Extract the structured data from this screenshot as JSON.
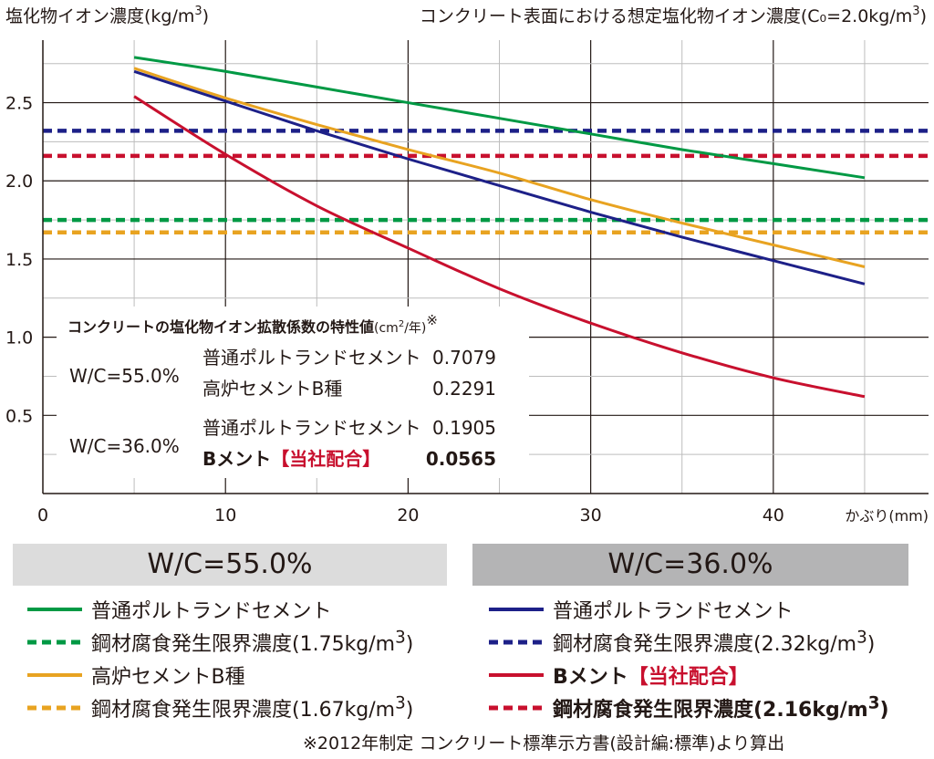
{
  "chart_data": {
    "type": "line",
    "ylabel": "塩化物イオン濃度(kg/m",
    "ylabel_sup": "3",
    "ylabel_close": ")",
    "subtitle": "コンクリート表面における想定塩化物イオン濃度(C₀=2.0kg/m",
    "subtitle_sup": "3",
    "subtitle_close": ")",
    "xlabel": "かぶり(mm)",
    "x_ticks": [
      "0",
      "10",
      "20",
      "30",
      "40"
    ],
    "y_ticks": [
      "0.5",
      "1.0",
      "1.5",
      "2.0",
      "2.5"
    ],
    "xlim": [
      0,
      48.5
    ],
    "ylim": [
      0,
      2.9
    ],
    "x_ticks_values": [
      0,
      10,
      20,
      30,
      40
    ],
    "y_ticks_values": [
      0.5,
      1.0,
      1.5,
      2.0,
      2.5
    ],
    "grid": true,
    "series": [
      {
        "name": "普通ポルトランドセメント",
        "group": "W/C=55.0%",
        "color": "#009944",
        "style": "solid",
        "x": [
          5,
          10,
          15,
          20,
          25,
          30,
          35,
          40,
          45
        ],
        "y": [
          2.79,
          2.7,
          2.6,
          2.5,
          2.4,
          2.3,
          2.2,
          2.11,
          2.02
        ]
      },
      {
        "name": "高炉セメントB種",
        "group": "W/C=55.0%",
        "color": "#e8a321",
        "style": "solid",
        "x": [
          5,
          10,
          15,
          20,
          25,
          30,
          35,
          40,
          45
        ],
        "y": [
          2.72,
          2.53,
          2.36,
          2.2,
          2.05,
          1.88,
          1.73,
          1.59,
          1.45
        ]
      },
      {
        "name": "普通ポルトランドセメント",
        "group": "W/C=36.0%",
        "color": "#1d2088",
        "style": "solid",
        "x": [
          5,
          10,
          15,
          20,
          25,
          30,
          35,
          40,
          45
        ],
        "y": [
          2.7,
          2.51,
          2.32,
          2.14,
          1.97,
          1.8,
          1.64,
          1.49,
          1.34
        ]
      },
      {
        "name": "Bメント【当社配合】",
        "group": "W/C=36.0%",
        "color": "#c8102e",
        "style": "solid",
        "x": [
          5,
          10,
          15,
          20,
          25,
          30,
          35,
          40,
          45
        ],
        "y": [
          2.54,
          2.17,
          1.84,
          1.57,
          1.31,
          1.09,
          0.9,
          0.74,
          0.62
        ]
      },
      {
        "name": "鋼材腐食発生限界濃度",
        "group": "W/C=36.0%",
        "color": "#1d2088",
        "style": "dashed",
        "x": [
          0,
          48.5
        ],
        "y": [
          2.32,
          2.32
        ]
      },
      {
        "name": "鋼材腐食発生限界濃度",
        "group": "W/C=36.0%",
        "color": "#c8102e",
        "style": "dashed",
        "x": [
          0,
          48.5
        ],
        "y": [
          2.16,
          2.16
        ]
      },
      {
        "name": "鋼材腐食発生限界濃度",
        "group": "W/C=55.0%",
        "color": "#009944",
        "style": "dashed",
        "x": [
          0,
          48.5
        ],
        "y": [
          1.75,
          1.75
        ]
      },
      {
        "name": "鋼材腐食発生限界濃度",
        "group": "W/C=55.0%",
        "color": "#e8a321",
        "style": "dashed",
        "x": [
          0,
          48.5
        ],
        "y": [
          1.67,
          1.67
        ]
      }
    ],
    "inset_table": {
      "title": "コンクリートの塩化物イオン拡散係数の特性値",
      "unit": "(cm",
      "unit_sup": "2",
      "unit_close": "/年)",
      "mark": "※",
      "groups": [
        {
          "label": "W/C=55.0%",
          "rows": [
            {
              "name": "普通ポルトランドセメント",
              "value": "0.7079"
            },
            {
              "name": "高炉セメントB種",
              "value": "0.2291"
            }
          ]
        },
        {
          "label": "W/C=36.0%",
          "rows": [
            {
              "name": "普通ポルトランドセメント",
              "value": "0.1905"
            },
            {
              "name": "Bメント",
              "name_highlight": "【当社配合】",
              "value": "0.0565"
            }
          ]
        }
      ]
    }
  },
  "legend": {
    "left": {
      "header": "W/C=55.0%",
      "items": [
        {
          "label": "普通ポルトランドセメント",
          "color": "#009944",
          "style": "solid"
        },
        {
          "label": "鋼材腐食発生限界濃度(1.75kg/m",
          "sup": "3",
          "close": ")",
          "color": "#009944",
          "style": "dashed"
        },
        {
          "label": "高炉セメントB種",
          "color": "#e8a321",
          "style": "solid"
        },
        {
          "label": "鋼材腐食発生限界濃度(1.67kg/m",
          "sup": "3",
          "close": ")",
          "color": "#e8a321",
          "style": "dashed"
        }
      ]
    },
    "right": {
      "header": "W/C=36.0%",
      "items": [
        {
          "label": "普通ポルトランドセメント",
          "color": "#1d2088",
          "style": "solid"
        },
        {
          "label": "鋼材腐食発生限界濃度(2.32kg/m",
          "sup": "3",
          "close": ")",
          "color": "#1d2088",
          "style": "dashed"
        },
        {
          "label": "Bメント",
          "highlight": "【当社配合】",
          "color": "#c8102e",
          "style": "solid"
        },
        {
          "label": "鋼材腐食発生限界濃度(2.16kg/m",
          "sup": "3",
          "close": ")",
          "color": "#c8102e",
          "style": "dashed"
        }
      ]
    }
  },
  "footnote": "※2012年制定 コンクリート標準示方書(設計編:標準)より算出"
}
